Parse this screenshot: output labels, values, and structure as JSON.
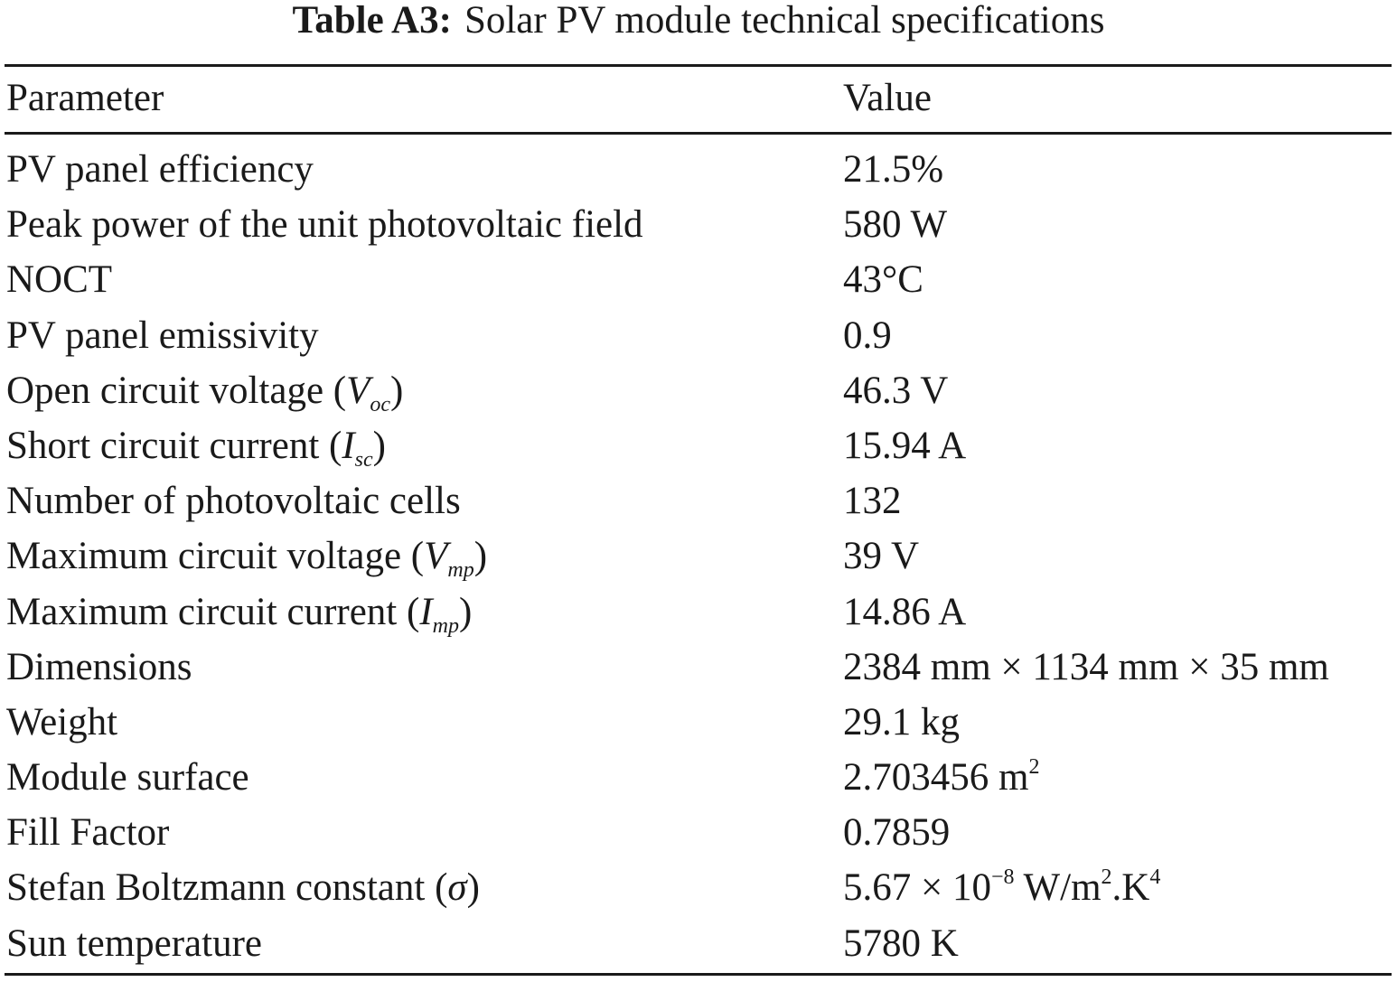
{
  "caption": {
    "label": "Table A3:",
    "title": "Solar PV module technical specifications"
  },
  "table": {
    "headers": {
      "parameter": "Parameter",
      "value": "Value"
    },
    "rows": [
      {
        "parameter": "PV panel efficiency",
        "value": "21.5%"
      },
      {
        "parameter": "Peak power of the unit photovoltaic field",
        "value": "580 W"
      },
      {
        "parameter": "NOCT",
        "value": "43°C"
      },
      {
        "parameter": "PV panel emissivity",
        "value": "0.9"
      },
      {
        "parameter": "Open circuit voltage (",
        "symbol": "V",
        "subscript": "oc",
        "close": ")",
        "value": "46.3 V"
      },
      {
        "parameter": "Short circuit current (",
        "symbol": "I",
        "subscript": "sc",
        "close": ")",
        "value": "15.94 A"
      },
      {
        "parameter": "Number of photovoltaic cells",
        "value": "132"
      },
      {
        "parameter": "Maximum circuit voltage (",
        "symbol": "V",
        "subscript": "mp",
        "close": ")",
        "value": "39 V"
      },
      {
        "parameter": "Maximum circuit current (",
        "symbol": "I",
        "subscript": "mp",
        "close": ")",
        "value": "14.86 A"
      },
      {
        "parameter": "Dimensions",
        "value": "2384 mm × 1134 mm × 35 mm"
      },
      {
        "parameter": "Weight",
        "value": "29.1 kg"
      },
      {
        "parameter": "Module surface",
        "value": "2.703456 m",
        "value_sup": "2"
      },
      {
        "parameter": "Fill Factor",
        "value": "0.7859"
      },
      {
        "parameter": "Stefan Boltzmann constant (",
        "symbol": "σ",
        "close": ")",
        "value": "5.67 × 10",
        "value_sup": "−8",
        "value_mid": " W/m",
        "value_sup2": "2",
        "value_mid2": ".K",
        "value_sup3": "4"
      },
      {
        "parameter": "Sun temperature",
        "value": "5780 K"
      }
    ]
  }
}
